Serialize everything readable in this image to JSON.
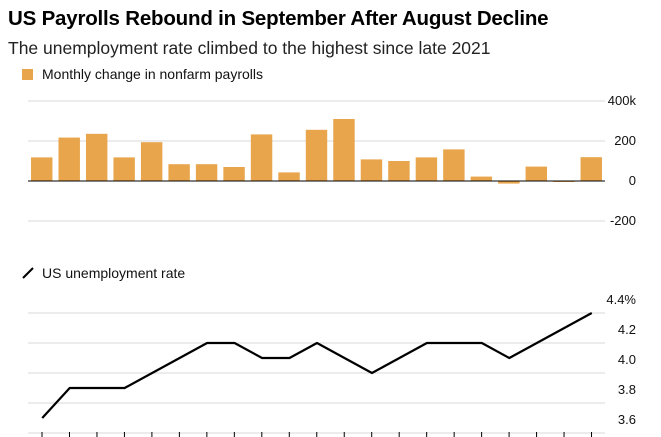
{
  "header": {
    "title": "US Payrolls Rebound in September After August Decline",
    "subtitle": "The unemployment rate climbed to the highest since late 2021"
  },
  "legend": {
    "bar_label": "Monthly change in nonfarm payrolls",
    "line_label": "US unemployment rate"
  },
  "colors": {
    "bar": "#E8A54B",
    "line": "#000000",
    "grid": "#d9d9d9",
    "baseline": "#000000"
  },
  "chart_data": [
    {
      "type": "bar",
      "title": "Monthly change in nonfarm payrolls",
      "ylim": [
        -200,
        400
      ],
      "yticks": [
        400,
        200,
        0,
        -200
      ],
      "ytick_labels": [
        "400k",
        "200",
        "0",
        "-200"
      ],
      "series": [
        {
          "name": "Monthly change in nonfarm payrolls",
          "values": [
            118,
            217,
            236,
            118,
            194,
            84,
            84,
            70,
            233,
            43,
            256,
            310,
            108,
            100,
            118,
            158,
            22,
            -13,
            72,
            -2,
            119
          ]
        }
      ]
    },
    {
      "type": "line",
      "title": "US unemployment rate",
      "ylim": [
        3.6,
        4.4
      ],
      "yticks": [
        4.4,
        4.2,
        4.0,
        3.8,
        3.6
      ],
      "ytick_labels": [
        "4.4%",
        "4.2",
        "4.0",
        "3.8",
        "3.6"
      ],
      "series": [
        {
          "name": "US unemployment rate",
          "values": [
            3.7,
            3.9,
            3.9,
            3.9,
            4.0,
            4.1,
            4.2,
            4.2,
            4.1,
            4.1,
            4.2,
            4.1,
            4.0,
            4.1,
            4.2,
            4.2,
            4.2,
            4.1,
            4.2,
            4.3,
            4.4
          ]
        }
      ]
    }
  ]
}
